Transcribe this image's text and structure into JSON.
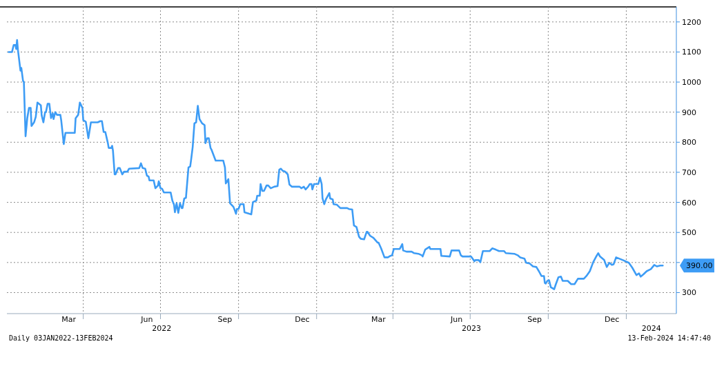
{
  "chart_data": {
    "type": "line",
    "x": [
      "2022-01-03",
      "2022-01-07",
      "2022-01-09",
      "2022-01-11",
      "2022-01-12",
      "2022-01-13",
      "2022-01-14",
      "2022-01-17",
      "2022-01-18",
      "2022-01-20",
      "2022-01-21",
      "2022-01-23",
      "2022-01-25",
      "2022-01-27",
      "2022-01-29",
      "2022-01-30",
      "2022-02-02",
      "2022-02-04",
      "2022-02-06",
      "2022-02-10",
      "2022-02-11",
      "2022-02-13",
      "2022-02-15",
      "2022-02-16",
      "2022-02-18",
      "2022-02-20",
      "2022-02-22",
      "2022-02-24",
      "2022-02-25",
      "2022-02-27",
      "2022-03-01",
      "2022-03-05",
      "2022-03-06",
      "2022-03-09",
      "2022-03-11",
      "2022-03-13",
      "2022-03-22",
      "2022-03-23",
      "2022-03-26",
      "2022-03-28",
      "2022-03-31",
      "2022-04-01",
      "2022-04-04",
      "2022-04-07",
      "2022-04-10",
      "2022-04-18",
      "2022-04-21",
      "2022-04-23",
      "2022-04-25",
      "2022-04-27",
      "2022-04-30",
      "2022-05-01",
      "2022-05-04",
      "2022-05-05",
      "2022-05-06",
      "2022-05-08",
      "2022-05-09",
      "2022-05-12",
      "2022-05-14",
      "2022-05-17",
      "2022-05-19",
      "2022-05-23",
      "2022-05-25",
      "2022-06-06",
      "2022-06-08",
      "2022-06-10",
      "2022-06-13",
      "2022-06-15",
      "2022-06-17",
      "2022-06-18",
      "2022-06-23",
      "2022-06-25",
      "2022-06-28",
      "2022-06-29",
      "2022-07-01",
      "2022-07-03",
      "2022-07-05",
      "2022-07-13",
      "2022-07-15",
      "2022-07-17",
      "2022-07-18",
      "2022-07-20",
      "2022-07-22",
      "2022-07-24",
      "2022-07-26",
      "2022-07-27",
      "2022-07-29",
      "2022-07-31",
      "2022-08-03",
      "2022-08-05",
      "2022-08-06",
      "2022-08-08",
      "2022-08-10",
      "2022-08-12",
      "2022-08-14",
      "2022-08-16",
      "2022-08-19",
      "2022-08-22",
      "2022-08-23",
      "2022-08-25",
      "2022-08-27",
      "2022-08-29",
      "2022-08-30",
      "2022-09-04",
      "2022-09-13",
      "2022-09-15",
      "2022-09-16",
      "2022-09-19",
      "2022-09-21",
      "2022-09-25",
      "2022-09-26",
      "2022-09-28",
      "2022-09-29",
      "2022-10-01",
      "2022-10-03",
      "2022-10-07",
      "2022-10-08",
      "2022-10-16",
      "2022-10-18",
      "2022-10-22",
      "2022-10-23",
      "2022-10-26",
      "2022-10-27",
      "2022-10-29",
      "2022-10-31",
      "2022-11-03",
      "2022-11-05",
      "2022-11-08",
      "2022-11-12",
      "2022-11-16",
      "2022-11-18",
      "2022-11-20",
      "2022-11-22",
      "2022-11-25",
      "2022-11-28",
      "2022-11-30",
      "2022-12-03",
      "2022-12-12",
      "2022-12-14",
      "2022-12-17",
      "2022-12-19",
      "2022-12-22",
      "2022-12-24",
      "2022-12-26",
      "2022-12-27",
      "2022-12-29",
      "2023-01-03",
      "2023-01-05",
      "2023-01-07",
      "2023-01-08",
      "2023-01-10",
      "2023-01-12",
      "2023-01-16",
      "2023-01-17",
      "2023-01-20",
      "2023-01-21",
      "2023-01-25",
      "2023-01-29",
      "2023-02-06",
      "2023-02-08",
      "2023-02-12",
      "2023-02-14",
      "2023-02-17",
      "2023-02-20",
      "2023-02-22",
      "2023-02-26",
      "2023-03-01",
      "2023-03-02",
      "2023-03-05",
      "2023-03-09",
      "2023-03-14",
      "2023-03-15",
      "2023-03-18",
      "2023-03-22",
      "2023-03-26",
      "2023-03-29",
      "2023-03-31",
      "2023-04-02",
      "2023-04-09",
      "2023-04-12",
      "2023-04-13",
      "2023-04-17",
      "2023-04-23",
      "2023-04-26",
      "2023-05-01",
      "2023-05-05",
      "2023-05-06",
      "2023-05-09",
      "2023-05-14",
      "2023-05-15",
      "2023-05-27",
      "2023-05-28",
      "2023-06-07",
      "2023-06-09",
      "2023-06-18",
      "2023-06-20",
      "2023-06-22",
      "2023-07-02",
      "2023-07-06",
      "2023-07-07",
      "2023-07-11",
      "2023-07-13",
      "2023-07-16",
      "2023-07-24",
      "2023-07-27",
      "2023-07-31",
      "2023-08-04",
      "2023-08-10",
      "2023-08-12",
      "2023-08-22",
      "2023-08-26",
      "2023-08-29",
      "2023-09-03",
      "2023-09-05",
      "2023-09-09",
      "2023-09-13",
      "2023-09-17",
      "2023-09-20",
      "2023-09-23",
      "2023-09-26",
      "2023-09-27",
      "2023-09-28",
      "2023-09-30",
      "2023-10-02",
      "2023-10-04",
      "2023-10-08",
      "2023-10-10",
      "2023-10-13",
      "2023-10-16",
      "2023-10-18",
      "2023-10-24",
      "2023-10-28",
      "2023-11-01",
      "2023-11-05",
      "2023-11-12",
      "2023-11-15",
      "2023-11-19",
      "2023-11-23",
      "2023-11-27",
      "2023-11-29",
      "2023-12-01",
      "2023-12-06",
      "2023-12-09",
      "2023-12-12",
      "2023-12-15",
      "2023-12-17",
      "2023-12-20",
      "2023-12-28",
      "2024-01-04",
      "2024-01-08",
      "2024-01-13",
      "2024-01-16",
      "2024-01-18",
      "2024-01-21",
      "2024-01-25",
      "2024-01-30",
      "2024-02-03",
      "2024-02-06",
      "2024-02-10",
      "2024-02-13"
    ],
    "series": [
      {
        "color": "#3d9cf5",
        "values": [
          1100,
          1100,
          1123,
          1123,
          1110,
          1140,
          1107,
          1038,
          1047,
          1004,
          1000,
          820,
          880,
          914,
          914,
          854,
          866,
          884,
          932,
          923,
          889,
          866,
          900,
          900,
          928,
          928,
          880,
          896,
          877,
          900,
          891,
          891,
          873,
          794,
          831,
          831,
          831,
          880,
          891,
          932,
          914,
          873,
          868,
          813,
          866,
          866,
          870,
          870,
          834,
          834,
          797,
          781,
          781,
          788,
          772,
          693,
          693,
          714,
          714,
          693,
          702,
          702,
          712,
          714,
          730,
          714,
          712,
          689,
          686,
          673,
          673,
          647,
          656,
          670,
          647,
          645,
          633,
          633,
          606,
          592,
          567,
          597,
          565,
          597,
          581,
          581,
          613,
          615,
          716,
          719,
          739,
          785,
          863,
          866,
          921,
          877,
          863,
          857,
          797,
          813,
          813,
          781,
          776,
          739,
          739,
          716,
          663,
          677,
          597,
          585,
          578,
          562,
          578,
          578,
          594,
          594,
          567,
          560,
          601,
          606,
          622,
          622,
          661,
          638,
          638,
          656,
          656,
          647,
          652,
          654,
          709,
          712,
          705,
          702,
          693,
          659,
          652,
          652,
          647,
          652,
          643,
          652,
          661,
          661,
          643,
          661,
          661,
          682,
          661,
          613,
          594,
          610,
          631,
          613,
          610,
          594,
          592,
          581,
          581,
          578,
          576,
          523,
          518,
          486,
          479,
          477,
          502,
          502,
          489,
          482,
          466,
          466,
          447,
          417,
          417,
          422,
          424,
          445,
          445,
          461,
          440,
          436,
          436,
          431,
          429,
          424,
          420,
          443,
          452,
          445,
          445,
          422,
          420,
          440,
          440,
          424,
          420,
          420,
          404,
          408,
          408,
          401,
          438,
          438,
          447,
          443,
          438,
          438,
          431,
          429,
          424,
          417,
          413,
          399,
          397,
          387,
          385,
          371,
          355,
          355,
          332,
          330,
          339,
          341,
          318,
          311,
          328,
          351,
          353,
          339,
          339,
          328,
          328,
          346,
          346,
          355,
          371,
          401,
          422,
          431,
          420,
          408,
          385,
          399,
          392,
          394,
          417,
          408,
          399,
          383,
          358,
          364,
          353,
          360,
          371,
          378,
          392,
          387,
          390,
          390
        ]
      }
    ],
    "xlim": [
      "2022-01-01",
      "2024-02-29"
    ],
    "xticks": [
      {
        "value": "2022-03-15",
        "label": "Mar"
      },
      {
        "value": "2022-04-01",
        "label": null
      },
      {
        "value": "2022-06-15",
        "label": "Jun"
      },
      {
        "value": "2022-07-01",
        "label": null
      },
      {
        "value": "2022-09-15",
        "label": "Sep"
      },
      {
        "value": "2022-10-01",
        "label": null
      },
      {
        "value": "2022-12-15",
        "label": "Dec"
      },
      {
        "value": "2023-01-01",
        "label": null
      },
      {
        "value": "2023-03-15",
        "label": "Mar"
      },
      {
        "value": "2023-04-01",
        "label": null
      },
      {
        "value": "2023-06-15",
        "label": "Jun"
      },
      {
        "value": "2023-07-01",
        "label": null
      },
      {
        "value": "2023-09-15",
        "label": "Sep"
      },
      {
        "value": "2023-10-01",
        "label": null
      },
      {
        "value": "2023-12-15",
        "label": "Dec"
      },
      {
        "value": "2024-01-01",
        "label": null
      }
    ],
    "ylim": [
      230,
      1250
    ],
    "yticks": [
      300,
      {
        "value": 400,
        "label": null
      },
      500,
      600,
      700,
      800,
      900,
      1000,
      1100,
      1200
    ],
    "grid": true,
    "line_style": "solid",
    "annotations": [
      "2022",
      "2023",
      "2024",
      "Daily 03JAN2022-13FEB2024",
      "13-Feb-2024 14:47:40",
      "390.00"
    ]
  }
}
